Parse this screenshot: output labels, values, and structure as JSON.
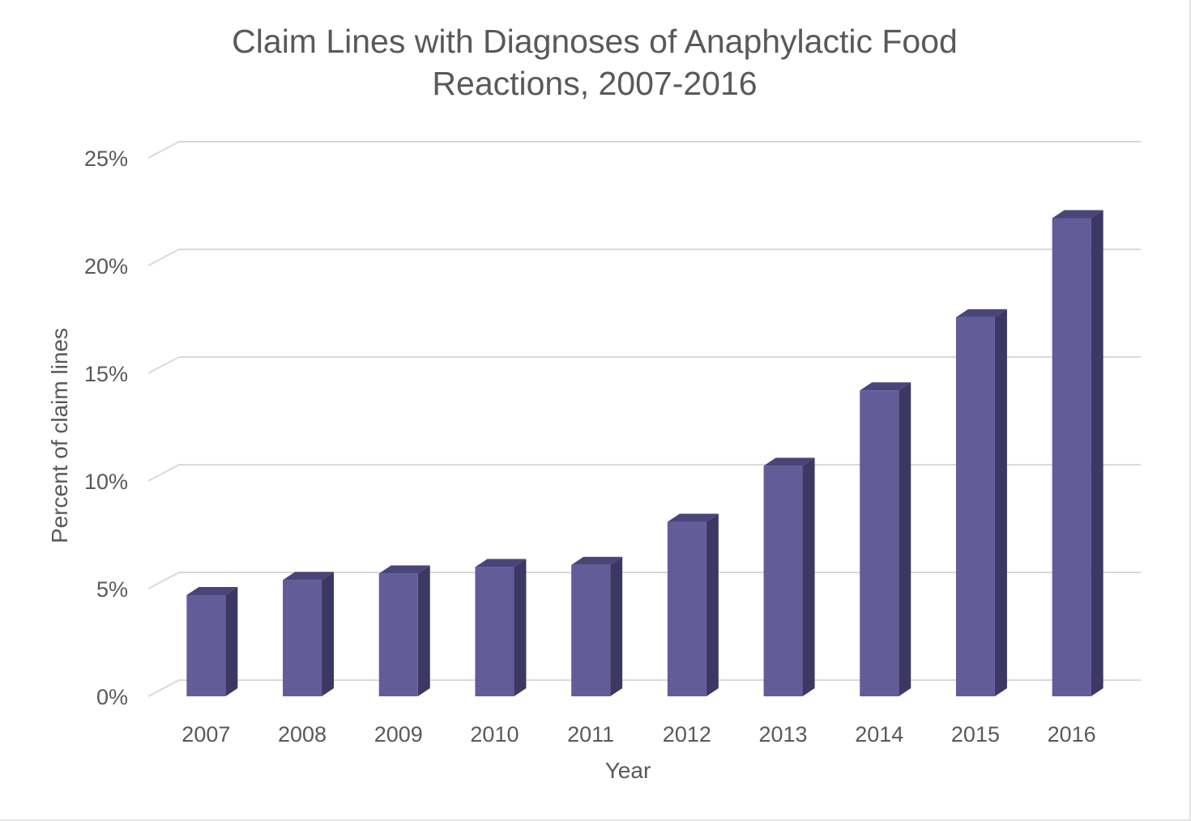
{
  "chart_data": {
    "type": "bar",
    "title": "Claim Lines with Diagnoses of Anaphylactic Food Reactions, 2007-2016",
    "title_lines": [
      "Claim Lines with Diagnoses of Anaphylactic Food",
      "Reactions, 2007-2016"
    ],
    "xlabel": "Year",
    "ylabel": "Percent of claim lines",
    "categories": [
      "2007",
      "2008",
      "2009",
      "2010",
      "2011",
      "2012",
      "2013",
      "2014",
      "2015",
      "2016"
    ],
    "values": [
      4.7,
      5.4,
      5.7,
      6.0,
      6.1,
      8.1,
      10.7,
      14.2,
      17.6,
      22.2
    ],
    "value_unit": "%",
    "ylim": [
      0,
      25
    ],
    "yticks": [
      0,
      5,
      10,
      15,
      20,
      25
    ],
    "ytick_labels": [
      "0%",
      "5%",
      "10%",
      "15%",
      "20%",
      "25%"
    ],
    "bar_style": "3d-column",
    "grid": true,
    "legend": "none",
    "colors": {
      "bar_front": "#625c99",
      "bar_side": "#3c3863",
      "bar_top": "#4a4578",
      "grid": "#d9d9d9",
      "text": "#595959"
    }
  }
}
